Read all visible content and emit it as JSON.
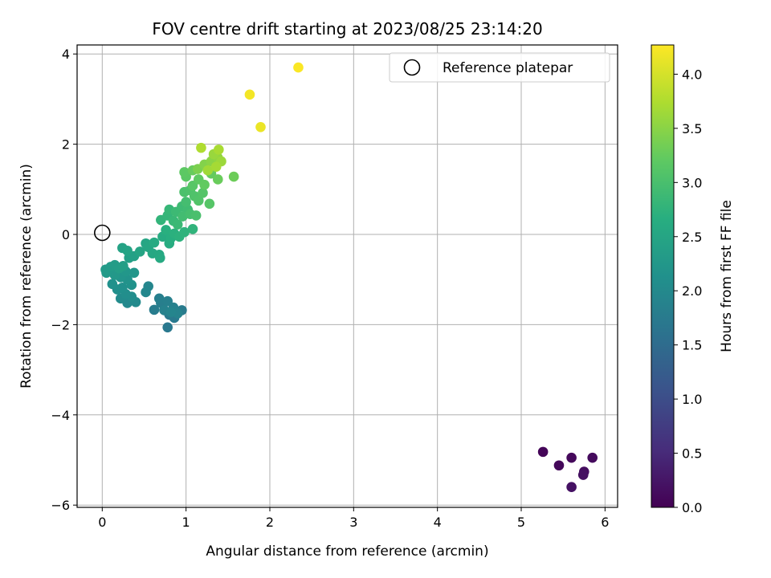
{
  "chart_data": {
    "type": "scatter",
    "title": "FOV centre drift starting at 2023/08/25 23:14:20",
    "xlabel": "Angular distance from reference (arcmin)",
    "ylabel": "Rotation from reference (arcmin)",
    "xlim": [
      -0.3,
      6.15
    ],
    "ylim": [
      -6.05,
      4.2
    ],
    "xticks": [
      0,
      1,
      2,
      3,
      4,
      5,
      6
    ],
    "xtick_labels": [
      "0",
      "1",
      "2",
      "3",
      "4",
      "5",
      "6"
    ],
    "yticks": [
      -6,
      -4,
      -2,
      0,
      2,
      4
    ],
    "ytick_labels": [
      "−6",
      "−4",
      "−2",
      "0",
      "2",
      "4"
    ],
    "grid": true,
    "legend": {
      "position": "top-right",
      "entries": [
        {
          "label": "Reference platepar",
          "marker": "open-circle"
        }
      ]
    },
    "reference_point": {
      "x": 0,
      "y": 0
    },
    "colorbar": {
      "label": "Hours from first FF file",
      "colormap": "viridis",
      "range": [
        0,
        4.27
      ],
      "ticks": [
        0.0,
        0.5,
        1.0,
        1.5,
        2.0,
        2.5,
        3.0,
        3.5,
        4.0
      ],
      "tick_labels": [
        "0.0",
        "0.5",
        "1.0",
        "1.5",
        "2.0",
        "2.5",
        "3.0",
        "3.5",
        "4.0"
      ]
    },
    "points": [
      {
        "x": 5.26,
        "y": -4.82,
        "t": 0.05
      },
      {
        "x": 5.45,
        "y": -5.12,
        "t": 0.08
      },
      {
        "x": 5.6,
        "y": -4.95,
        "t": 0.1
      },
      {
        "x": 5.85,
        "y": -4.95,
        "t": 0.12
      },
      {
        "x": 5.75,
        "y": -5.26,
        "t": 0.15
      },
      {
        "x": 5.74,
        "y": -5.33,
        "t": 0.18
      },
      {
        "x": 5.6,
        "y": -5.6,
        "t": 0.2
      },
      {
        "x": 0.78,
        "y": -2.06,
        "t": 1.7
      },
      {
        "x": 0.86,
        "y": -1.85,
        "t": 1.72
      },
      {
        "x": 0.8,
        "y": -1.78,
        "t": 1.74
      },
      {
        "x": 0.95,
        "y": -1.68,
        "t": 1.76
      },
      {
        "x": 0.62,
        "y": -1.67,
        "t": 1.78
      },
      {
        "x": 0.7,
        "y": -1.52,
        "t": 1.8
      },
      {
        "x": 0.68,
        "y": -1.42,
        "t": 1.82
      },
      {
        "x": 0.78,
        "y": -1.48,
        "t": 1.84
      },
      {
        "x": 0.85,
        "y": -1.62,
        "t": 1.86
      },
      {
        "x": 0.74,
        "y": -1.68,
        "t": 1.88
      },
      {
        "x": 0.9,
        "y": -1.75,
        "t": 1.9
      },
      {
        "x": 0.82,
        "y": -1.72,
        "t": 1.92
      },
      {
        "x": 0.55,
        "y": -1.15,
        "t": 1.95
      },
      {
        "x": 0.52,
        "y": -1.28,
        "t": 1.97
      },
      {
        "x": 0.3,
        "y": -1.52,
        "t": 2.0
      },
      {
        "x": 0.4,
        "y": -1.5,
        "t": 2.02
      },
      {
        "x": 0.22,
        "y": -1.42,
        "t": 2.04
      },
      {
        "x": 0.35,
        "y": -1.38,
        "t": 2.06
      },
      {
        "x": 0.28,
        "y": -1.32,
        "t": 2.08
      },
      {
        "x": 0.18,
        "y": -1.22,
        "t": 2.1
      },
      {
        "x": 0.24,
        "y": -1.18,
        "t": 2.12
      },
      {
        "x": 0.12,
        "y": -1.1,
        "t": 2.14
      },
      {
        "x": 0.35,
        "y": -1.12,
        "t": 2.16
      },
      {
        "x": 0.3,
        "y": -1.0,
        "t": 2.18
      },
      {
        "x": 0.22,
        "y": -0.95,
        "t": 2.2
      },
      {
        "x": 0.38,
        "y": -0.85,
        "t": 2.22
      },
      {
        "x": 0.28,
        "y": -0.82,
        "t": 2.24
      },
      {
        "x": 0.15,
        "y": -0.9,
        "t": 2.26
      },
      {
        "x": 0.05,
        "y": -0.85,
        "t": 2.28
      },
      {
        "x": 0.04,
        "y": -0.78,
        "t": 2.3
      },
      {
        "x": 0.1,
        "y": -0.72,
        "t": 2.32
      },
      {
        "x": 0.15,
        "y": -0.68,
        "t": 2.34
      },
      {
        "x": 0.2,
        "y": -0.75,
        "t": 2.36
      },
      {
        "x": 0.25,
        "y": -0.7,
        "t": 2.38
      },
      {
        "x": 0.32,
        "y": -0.52,
        "t": 2.4
      },
      {
        "x": 0.38,
        "y": -0.48,
        "t": 2.42
      },
      {
        "x": 0.24,
        "y": -0.3,
        "t": 2.44
      },
      {
        "x": 0.3,
        "y": -0.36,
        "t": 2.46
      },
      {
        "x": 0.45,
        "y": -0.38,
        "t": 2.48
      },
      {
        "x": 0.52,
        "y": -0.2,
        "t": 2.5
      },
      {
        "x": 0.55,
        "y": -0.28,
        "t": 2.52
      },
      {
        "x": 0.6,
        "y": -0.42,
        "t": 2.54
      },
      {
        "x": 0.68,
        "y": -0.45,
        "t": 2.56
      },
      {
        "x": 0.69,
        "y": -0.52,
        "t": 2.58
      },
      {
        "x": 0.62,
        "y": -0.18,
        "t": 2.6
      },
      {
        "x": 0.72,
        "y": -0.05,
        "t": 2.62
      },
      {
        "x": 0.8,
        "y": -0.2,
        "t": 2.64
      },
      {
        "x": 0.82,
        "y": -0.08,
        "t": 2.66
      },
      {
        "x": 0.76,
        "y": 0.1,
        "t": 2.68
      },
      {
        "x": 0.86,
        "y": 0.02,
        "t": 2.7
      },
      {
        "x": 0.92,
        "y": -0.05,
        "t": 2.72
      },
      {
        "x": 0.98,
        "y": 0.05,
        "t": 2.74
      },
      {
        "x": 1.08,
        "y": 0.12,
        "t": 2.76
      },
      {
        "x": 0.7,
        "y": 0.32,
        "t": 2.78
      },
      {
        "x": 0.78,
        "y": 0.42,
        "t": 2.8
      },
      {
        "x": 0.8,
        "y": 0.55,
        "t": 2.82
      },
      {
        "x": 0.85,
        "y": 0.3,
        "t": 2.84
      },
      {
        "x": 0.9,
        "y": 0.22,
        "t": 2.86
      },
      {
        "x": 0.88,
        "y": 0.5,
        "t": 2.88
      },
      {
        "x": 0.95,
        "y": 0.62,
        "t": 2.9
      },
      {
        "x": 1.02,
        "y": 0.55,
        "t": 2.92
      },
      {
        "x": 0.96,
        "y": 0.4,
        "t": 2.94
      },
      {
        "x": 1.0,
        "y": 0.72,
        "t": 2.96
      },
      {
        "x": 1.05,
        "y": 0.45,
        "t": 2.98
      },
      {
        "x": 1.12,
        "y": 0.42,
        "t": 3.0
      },
      {
        "x": 0.98,
        "y": 0.94,
        "t": 3.02
      },
      {
        "x": 1.05,
        "y": 0.98,
        "t": 3.04
      },
      {
        "x": 1.1,
        "y": 0.85,
        "t": 3.06
      },
      {
        "x": 1.15,
        "y": 0.75,
        "t": 3.08
      },
      {
        "x": 1.2,
        "y": 0.92,
        "t": 3.1
      },
      {
        "x": 1.28,
        "y": 0.68,
        "t": 3.12
      },
      {
        "x": 1.08,
        "y": 1.08,
        "t": 3.14
      },
      {
        "x": 1.0,
        "y": 1.28,
        "t": 3.16
      },
      {
        "x": 0.98,
        "y": 1.38,
        "t": 3.18
      },
      {
        "x": 1.15,
        "y": 1.22,
        "t": 3.2
      },
      {
        "x": 1.22,
        "y": 1.1,
        "t": 3.22
      },
      {
        "x": 1.3,
        "y": 1.35,
        "t": 3.24
      },
      {
        "x": 1.08,
        "y": 1.42,
        "t": 3.26
      },
      {
        "x": 1.38,
        "y": 1.22,
        "t": 3.28
      },
      {
        "x": 1.57,
        "y": 1.28,
        "t": 3.3
      },
      {
        "x": 1.14,
        "y": 1.45,
        "t": 3.4
      },
      {
        "x": 1.22,
        "y": 1.55,
        "t": 3.45
      },
      {
        "x": 1.3,
        "y": 1.62,
        "t": 3.5
      },
      {
        "x": 1.38,
        "y": 1.7,
        "t": 3.55
      },
      {
        "x": 1.33,
        "y": 1.78,
        "t": 3.6
      },
      {
        "x": 1.42,
        "y": 1.62,
        "t": 3.62
      },
      {
        "x": 1.26,
        "y": 1.42,
        "t": 3.65
      },
      {
        "x": 1.36,
        "y": 1.5,
        "t": 3.68
      },
      {
        "x": 1.39,
        "y": 1.88,
        "t": 3.7
      },
      {
        "x": 1.18,
        "y": 1.92,
        "t": 3.75
      },
      {
        "x": 1.89,
        "y": 2.38,
        "t": 4.15
      },
      {
        "x": 1.76,
        "y": 3.1,
        "t": 4.2
      },
      {
        "x": 2.34,
        "y": 3.7,
        "t": 4.25
      }
    ]
  }
}
